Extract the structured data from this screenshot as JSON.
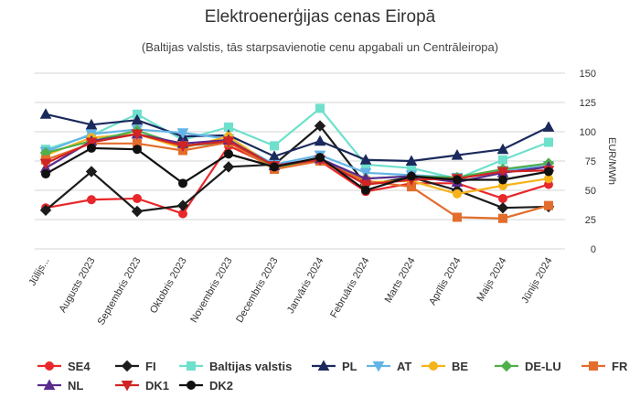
{
  "chart_data": {
    "type": "line",
    "title": "Elektroenerģijas cenas Eiropā",
    "subtitle": "(Baltijas valstis, tās starpsavienotie cenu apgabali un Centrāleiropa)",
    "ylabel": "EUR/MWh",
    "ylim": [
      0,
      150
    ],
    "yticks": [
      0,
      25,
      50,
      75,
      100,
      125,
      150
    ],
    "grid": true,
    "categories": [
      "Jūlijs...",
      "Augusts 2023",
      "Septembris 2023",
      "Oktobris 2023",
      "Novembris 2023",
      "Decembris 2023",
      "Janvāris 2024",
      "Februāris 2024",
      "Marts 2024",
      "Aprīlis 2024",
      "Maijs 2024",
      "Jūnijs 2024"
    ],
    "series": [
      {
        "name": "SE4",
        "color": "#e8282b",
        "marker": "circle",
        "values": [
          35,
          42,
          43,
          30,
          88,
          70,
          75,
          49,
          56,
          56,
          43,
          55
        ]
      },
      {
        "name": "FI",
        "color": "#1c1c1c",
        "marker": "diamond",
        "values": [
          33,
          66,
          32,
          37,
          70,
          72,
          105,
          55,
          61,
          50,
          35,
          36
        ]
      },
      {
        "name": "Baltijas valstis",
        "color": "#6ee0cc",
        "marker": "square",
        "values": [
          85,
          97,
          115,
          93,
          104,
          88,
          120,
          72,
          69,
          60,
          76,
          91
        ]
      },
      {
        "name": "PL",
        "color": "#1b2a5c",
        "marker": "triangle",
        "values": [
          115,
          106,
          110,
          96,
          97,
          79,
          92,
          76,
          75,
          80,
          85,
          104
        ]
      },
      {
        "name": "AT",
        "color": "#63b4e6",
        "marker": "triangle-down",
        "values": [
          83,
          98,
          102,
          99,
          94,
          72,
          80,
          65,
          63,
          61,
          67,
          71
        ]
      },
      {
        "name": "BE",
        "color": "#f5b31b",
        "marker": "circle",
        "values": [
          80,
          95,
          98,
          86,
          96,
          70,
          75,
          57,
          58,
          47,
          54,
          60
        ]
      },
      {
        "name": "DE-LU",
        "color": "#4faf4a",
        "marker": "diamond",
        "values": [
          82,
          92,
          101,
          88,
          91,
          69,
          76,
          60,
          62,
          61,
          68,
          73
        ]
      },
      {
        "name": "FR",
        "color": "#e36d2c",
        "marker": "square",
        "values": [
          76,
          90,
          90,
          84,
          91,
          68,
          75,
          58,
          53,
          27,
          26,
          37
        ]
      },
      {
        "name": "NL",
        "color": "#5a2a8c",
        "marker": "triangle",
        "values": [
          69,
          92,
          98,
          90,
          93,
          71,
          77,
          60,
          62,
          57,
          65,
          70
        ]
      },
      {
        "name": "DK1",
        "color": "#d12424",
        "marker": "triangle-down",
        "values": [
          73,
          91,
          98,
          88,
          92,
          71,
          76,
          55,
          59,
          60,
          66,
          67
        ]
      },
      {
        "name": "DK2",
        "color": "#111111",
        "marker": "circle",
        "values": [
          64,
          86,
          85,
          56,
          81,
          70,
          78,
          50,
          62,
          59,
          59,
          66
        ]
      }
    ]
  }
}
